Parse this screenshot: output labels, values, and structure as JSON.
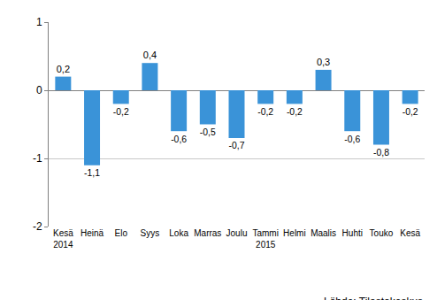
{
  "chart_data": {
    "type": "bar",
    "categories": [
      "Kesä\n2014",
      "Heinä",
      "Elo",
      "Syys",
      "Loka",
      "Marras",
      "Joulu",
      "Tammi\n2015",
      "Helmi",
      "Maalis",
      "Huhti",
      "Touko",
      "Kesä"
    ],
    "values": [
      0.2,
      -1.1,
      -0.2,
      0.4,
      -0.6,
      -0.5,
      -0.7,
      -0.2,
      -0.2,
      0.3,
      -0.6,
      -0.8,
      -0.2
    ],
    "value_labels": [
      "0,2",
      "-1,1",
      "-0,2",
      "0,4",
      "-0,6",
      "-0,5",
      "-0,7",
      "-0,2",
      "-0,2",
      "0,3",
      "-0,6",
      "-0,8",
      "-0,2"
    ],
    "color": "#3a93d8",
    "ylim": [
      -2,
      1
    ],
    "yticks": [
      -2,
      -1,
      0,
      1
    ],
    "grid": true,
    "data_labels": true,
    "source": "Lähde: Tilastokeskus"
  }
}
